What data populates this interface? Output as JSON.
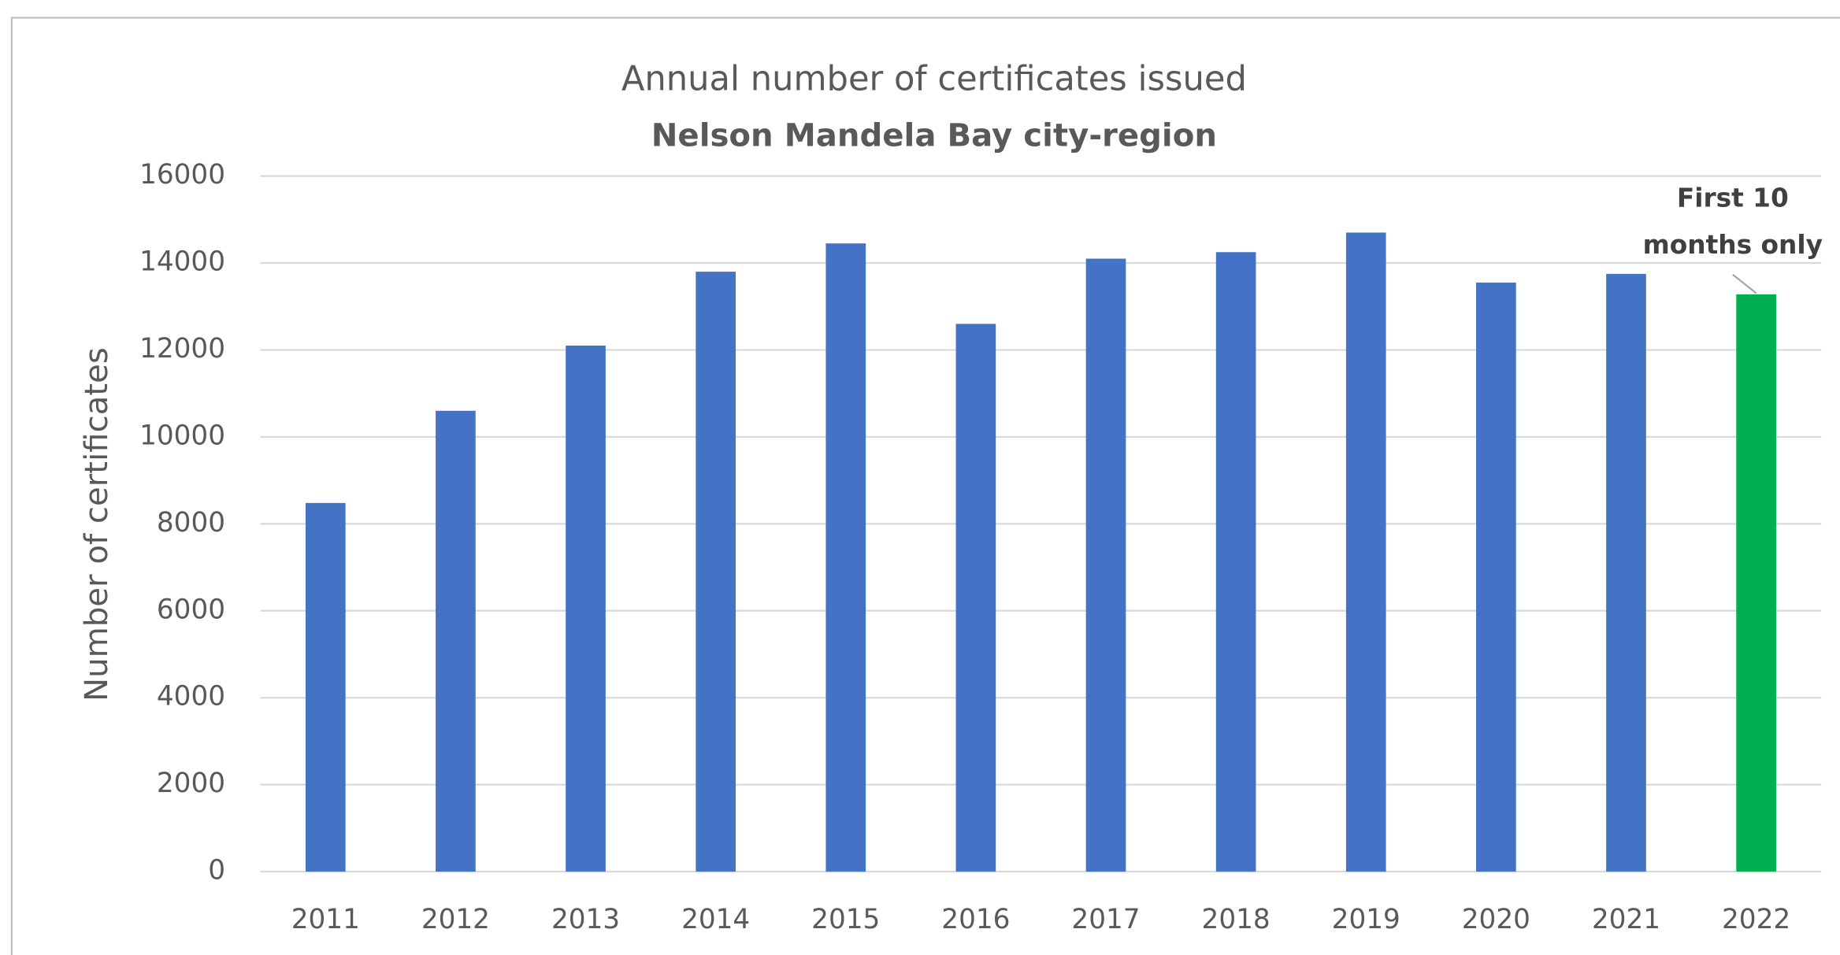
{
  "chart_data": {
    "type": "bar",
    "title": "Annual  number  of certificates issued",
    "subtitle": "Nelson Mandela Bay city-region",
    "y_label": "Number of certificates",
    "categories": [
      "2011",
      "2012",
      "2013",
      "2014",
      "2015",
      "2016",
      "2017",
      "2018",
      "2019",
      "2020",
      "2021",
      "2022"
    ],
    "values": [
      8480,
      10600,
      12100,
      13800,
      14450,
      12600,
      14100,
      14250,
      14700,
      13550,
      13750,
      13280
    ],
    "colors": [
      "#4472c4",
      "#4472c4",
      "#4472c4",
      "#4472c4",
      "#4472c4",
      "#4472c4",
      "#4472c4",
      "#4472c4",
      "#4472c4",
      "#4472c4",
      "#4472c4",
      "#00b050"
    ],
    "ylim": [
      0,
      16000
    ],
    "yticks": [
      0,
      2000,
      4000,
      6000,
      8000,
      10000,
      12000,
      14000,
      16000
    ],
    "grid": true,
    "annotation": {
      "lines": [
        "First 10",
        "months only"
      ],
      "category": 11
    }
  }
}
